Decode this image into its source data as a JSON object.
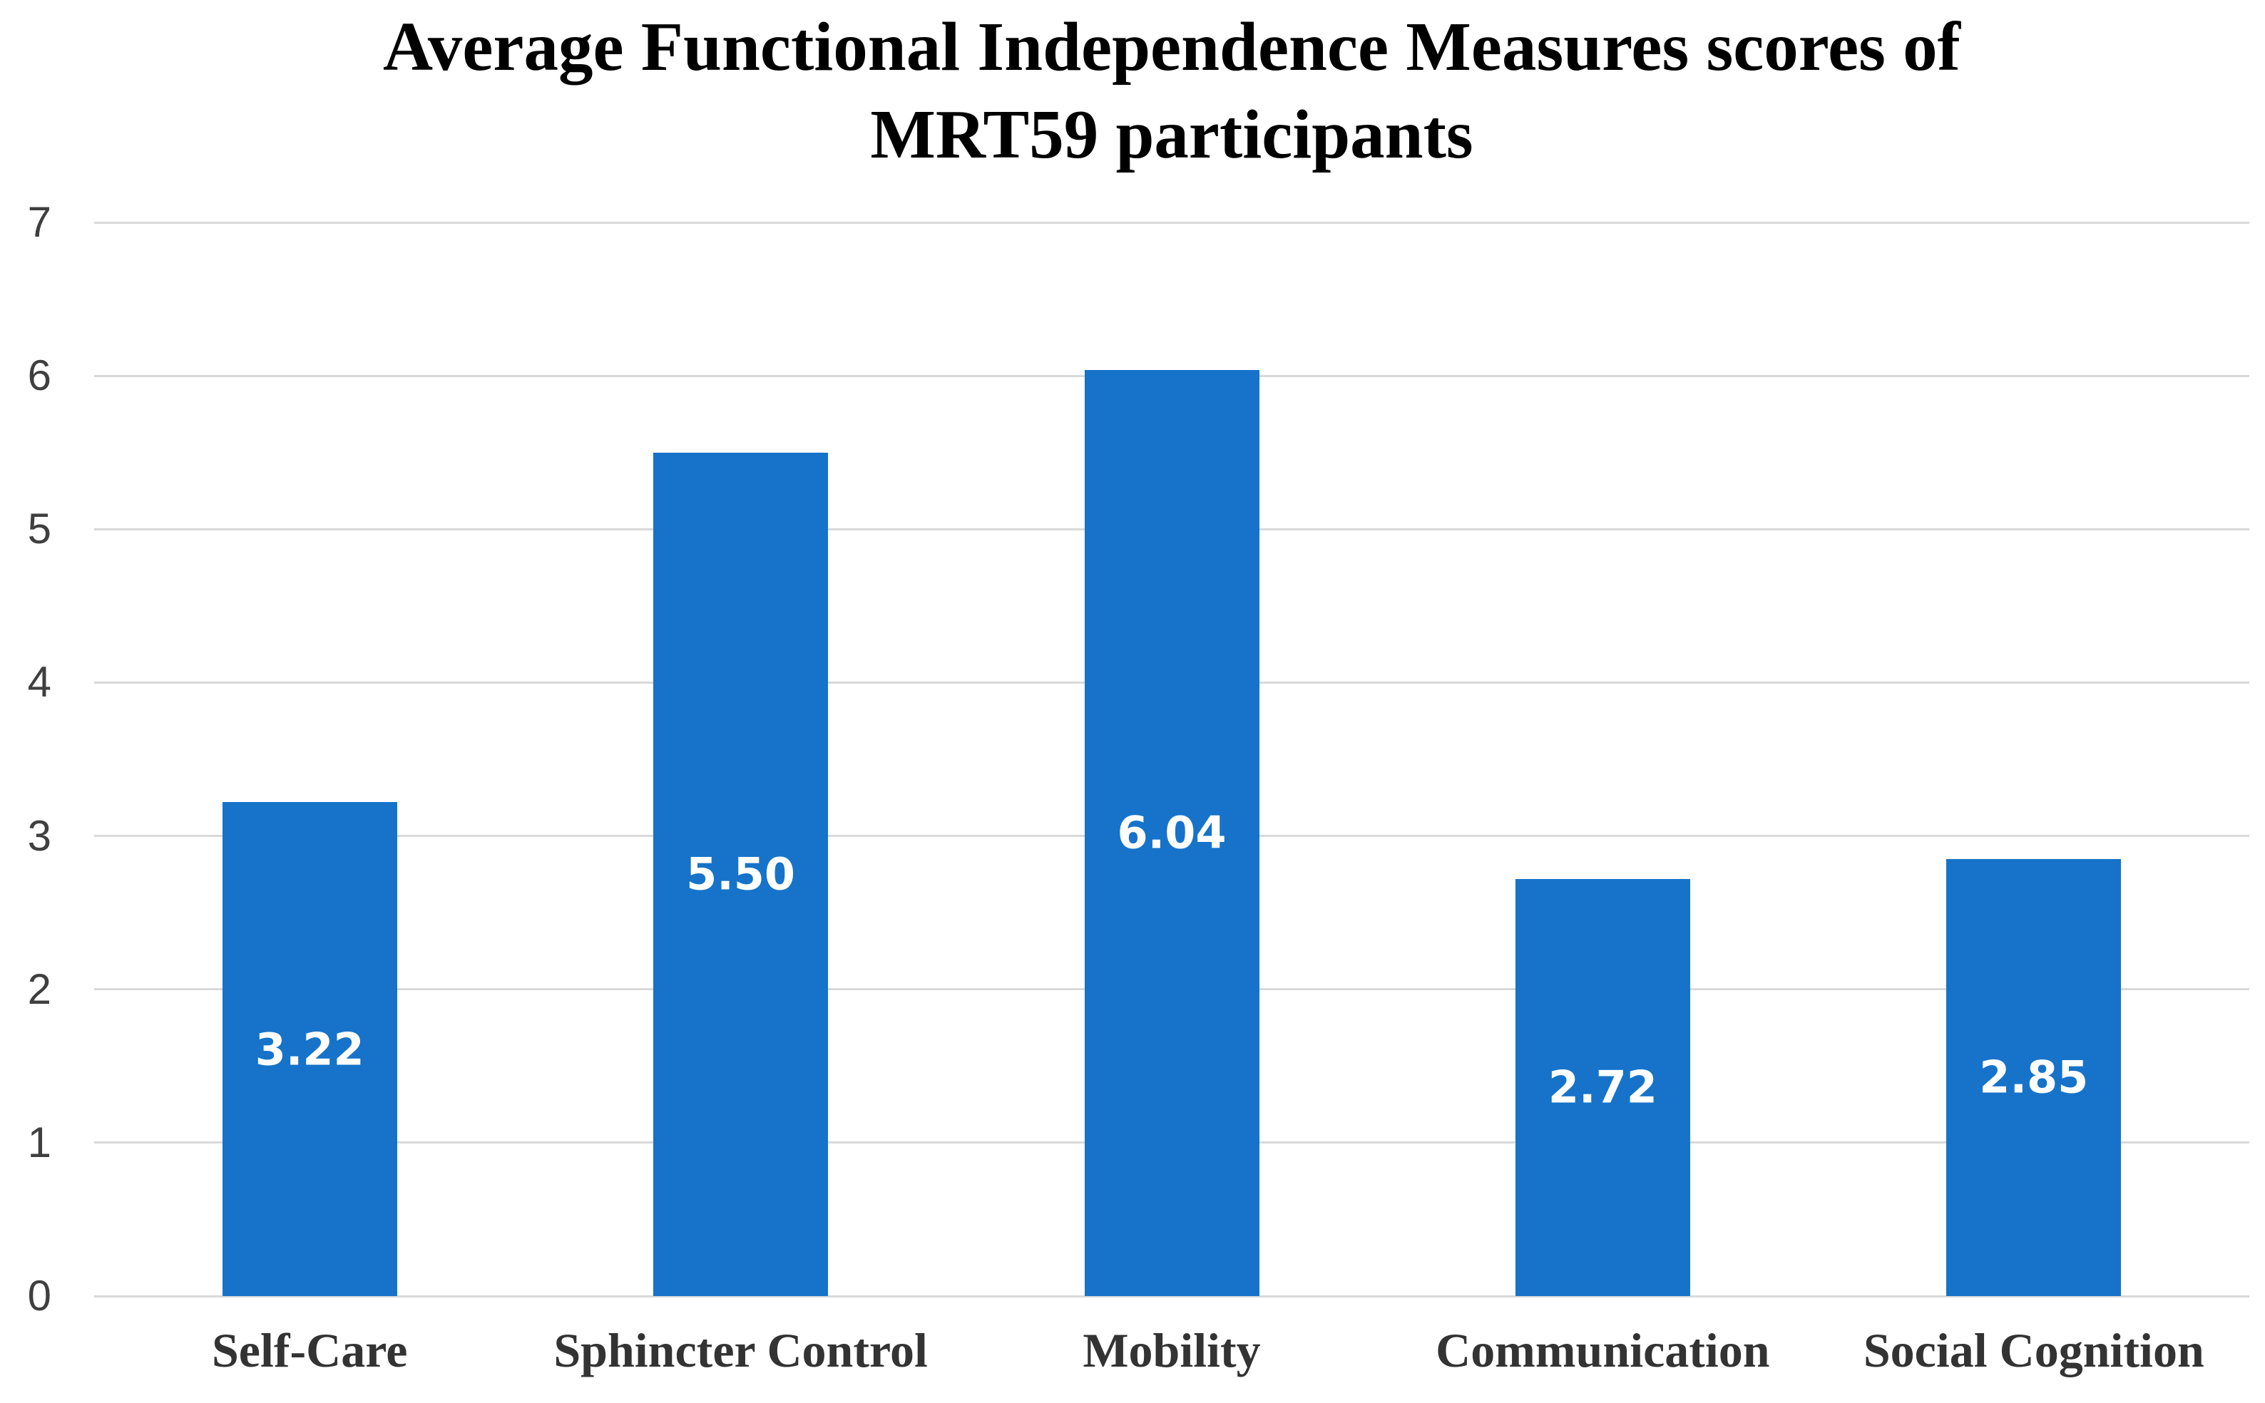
{
  "chart_data": {
    "type": "bar",
    "title": "Average Functional Independence Measures scores of MRT59 participants",
    "title_lines": [
      "Average Functional Independence Measures scores of",
      "MRT59 participants"
    ],
    "categories": [
      "Self-Care",
      "Sphincter Control",
      "Mobility",
      "Communication",
      "Social Cognition"
    ],
    "values": [
      3.22,
      5.5,
      6.04,
      2.72,
      2.85
    ],
    "value_labels": [
      "3.22",
      "5.50",
      "6.04",
      "2.72",
      "2.85"
    ],
    "xlabel": "",
    "ylabel": "",
    "ylim": [
      0,
      7
    ],
    "yticks": [
      0,
      1,
      2,
      3,
      4,
      5,
      6,
      7
    ],
    "grid": "horizontal",
    "legend": "none",
    "data_label_position": "inside-center",
    "colors": {
      "bar": "#1673C9",
      "value_label": "#FFFFFF",
      "gridline": "#D9D9D9",
      "y_tick_label": "#3F3F3F",
      "category_label": "#333333",
      "title": "#000000",
      "background": "#FFFFFF"
    }
  }
}
